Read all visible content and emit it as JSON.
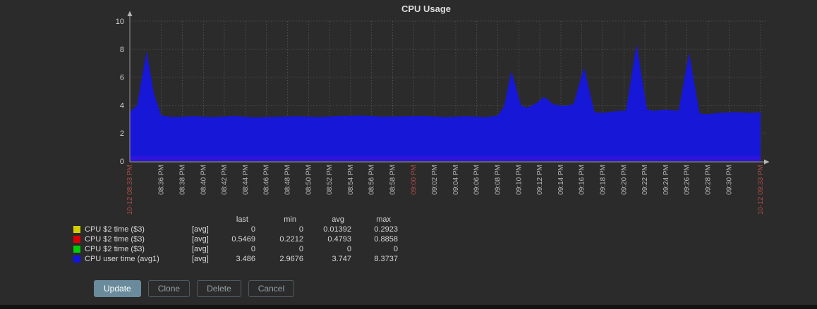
{
  "title": "CPU Usage",
  "chart_data": {
    "type": "area",
    "title": "CPU Usage",
    "ylabel": "",
    "xlabel": "",
    "ylim": [
      0,
      10
    ],
    "y_ticks": [
      0,
      2,
      4,
      6,
      8,
      10
    ],
    "grid": "dotted",
    "area_color": "#1717d8",
    "axis_color": "#9a9a9a",
    "grid_color": "#4e4e4e",
    "tick_label_color": "#b9b9b9",
    "highlight_tick_color": "#a84c46",
    "x_range_minutes": 60,
    "x_ticks": [
      {
        "t": 0,
        "label": "10-12 08:33 PM",
        "major": true
      },
      {
        "t": 3,
        "label": "08:36 PM"
      },
      {
        "t": 5,
        "label": "08:38 PM"
      },
      {
        "t": 7,
        "label": "08:40 PM"
      },
      {
        "t": 9,
        "label": "08:42 PM"
      },
      {
        "t": 11,
        "label": "08:44 PM"
      },
      {
        "t": 13,
        "label": "08:46 PM"
      },
      {
        "t": 15,
        "label": "08:48 PM"
      },
      {
        "t": 17,
        "label": "08:50 PM"
      },
      {
        "t": 19,
        "label": "08:52 PM"
      },
      {
        "t": 21,
        "label": "08:54 PM"
      },
      {
        "t": 23,
        "label": "08:56 PM"
      },
      {
        "t": 25,
        "label": "08:58 PM"
      },
      {
        "t": 27,
        "label": "09:00 PM",
        "major": true
      },
      {
        "t": 29,
        "label": "09:02 PM"
      },
      {
        "t": 31,
        "label": "09:04 PM"
      },
      {
        "t": 33,
        "label": "09:06 PM"
      },
      {
        "t": 35,
        "label": "09:08 PM"
      },
      {
        "t": 37,
        "label": "09:10 PM"
      },
      {
        "t": 39,
        "label": "09:12 PM"
      },
      {
        "t": 41,
        "label": "09:14 PM"
      },
      {
        "t": 43,
        "label": "09:16 PM"
      },
      {
        "t": 45,
        "label": "09:18 PM"
      },
      {
        "t": 47,
        "label": "09:20 PM"
      },
      {
        "t": 49,
        "label": "09:22 PM"
      },
      {
        "t": 51,
        "label": "09:24 PM"
      },
      {
        "t": 53,
        "label": "09:26 PM"
      },
      {
        "t": 55,
        "label": "09:28 PM"
      },
      {
        "t": 57,
        "label": "09:30 PM"
      },
      {
        "t": 60,
        "label": "10-12 09:33 PM",
        "major": true
      }
    ],
    "area_points": [
      [
        0,
        3.5
      ],
      [
        0.7,
        4.0
      ],
      [
        1.6,
        7.85
      ],
      [
        2.3,
        4.8
      ],
      [
        3,
        3.25
      ],
      [
        4,
        3.15
      ],
      [
        6,
        3.2
      ],
      [
        8,
        3.15
      ],
      [
        10,
        3.22
      ],
      [
        12,
        3.12
      ],
      [
        14,
        3.18
      ],
      [
        16,
        3.2
      ],
      [
        18,
        3.15
      ],
      [
        20,
        3.22
      ],
      [
        22,
        3.25
      ],
      [
        24,
        3.18
      ],
      [
        26,
        3.2
      ],
      [
        28,
        3.22
      ],
      [
        30,
        3.15
      ],
      [
        32,
        3.2
      ],
      [
        34,
        3.15
      ],
      [
        35,
        3.25
      ],
      [
        35.6,
        3.9
      ],
      [
        36.3,
        6.45
      ],
      [
        37.2,
        4.0
      ],
      [
        37.8,
        3.8
      ],
      [
        38.8,
        4.2
      ],
      [
        39.4,
        4.6
      ],
      [
        40.3,
        4.05
      ],
      [
        41.3,
        3.95
      ],
      [
        42.2,
        4.05
      ],
      [
        43.2,
        6.7
      ],
      [
        44.2,
        3.5
      ],
      [
        45,
        3.45
      ],
      [
        46,
        3.55
      ],
      [
        47.2,
        3.62
      ],
      [
        48.2,
        8.35
      ],
      [
        49.2,
        3.7
      ],
      [
        49.8,
        3.6
      ],
      [
        51,
        3.68
      ],
      [
        52.2,
        3.6
      ],
      [
        53.2,
        7.75
      ],
      [
        54.2,
        3.4
      ],
      [
        55,
        3.35
      ],
      [
        56,
        3.45
      ],
      [
        57.5,
        3.5
      ],
      [
        59,
        3.45
      ],
      [
        60,
        3.49
      ]
    ],
    "legend_headers": [
      "last",
      "min",
      "avg",
      "max"
    ],
    "series": [
      {
        "swatch": "#d6cf00",
        "name": "CPU $2 time ($3)",
        "fn": "[avg]",
        "last": "0",
        "min": "0",
        "avg": "0.01392",
        "max": "0.2923"
      },
      {
        "swatch": "#dd0000",
        "name": "CPU $2 time ($3)",
        "fn": "[avg]",
        "last": "0.5469",
        "min": "0.2212",
        "avg": "0.4793",
        "max": "0.8858"
      },
      {
        "swatch": "#00cc00",
        "name": "CPU $2 time ($3)",
        "fn": "[avg]",
        "last": "0",
        "min": "0",
        "avg": "0",
        "max": "0"
      },
      {
        "swatch": "#1414e0",
        "name": "CPU user time (avg1)",
        "fn": "[avg]",
        "last": "3.486",
        "min": "2.9676",
        "avg": "3.747",
        "max": "8.3737"
      }
    ]
  },
  "buttons": [
    {
      "label": "Update",
      "primary": true
    },
    {
      "label": "Clone"
    },
    {
      "label": "Delete"
    },
    {
      "label": "Cancel"
    }
  ]
}
